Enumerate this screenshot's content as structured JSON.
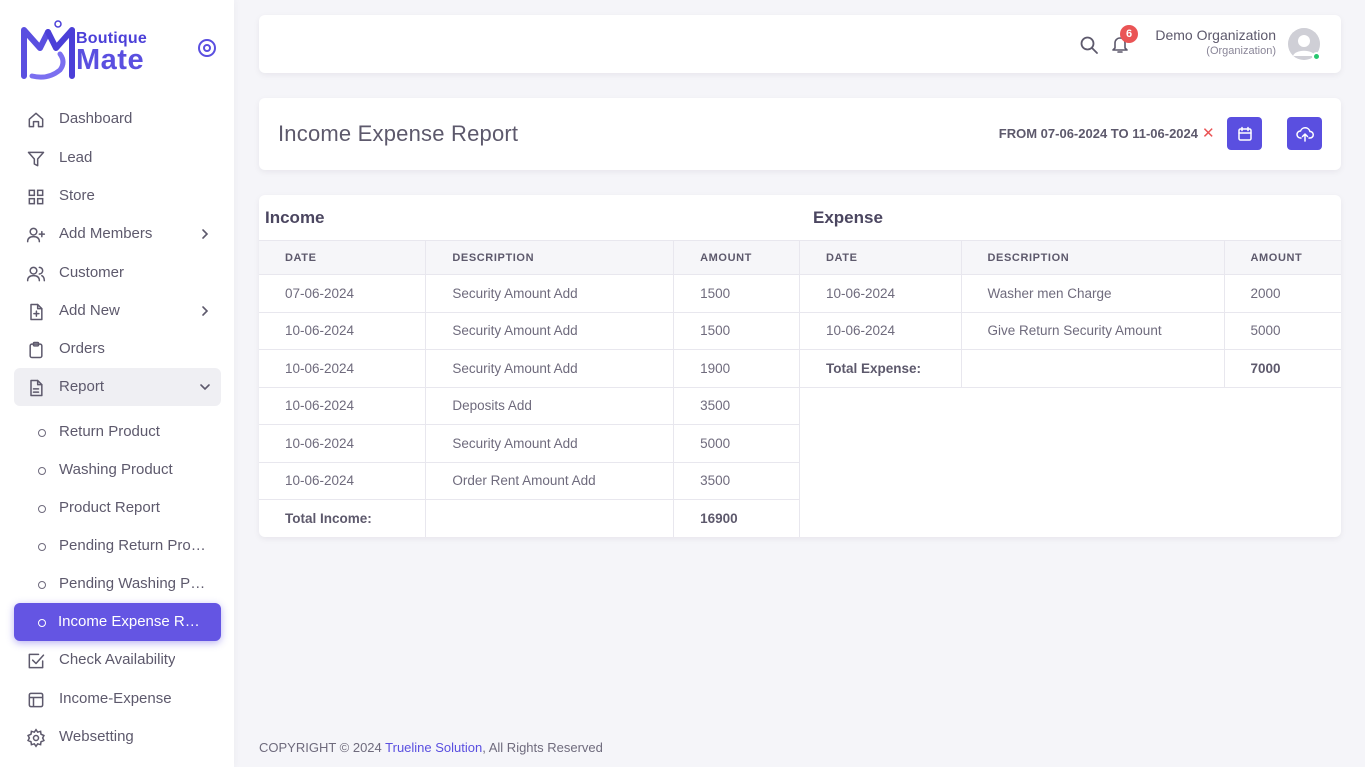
{
  "brand": {
    "line1": "Boutique",
    "line2": "Mate"
  },
  "sidebar": {
    "items": [
      {
        "label": "Dashboard",
        "icon": "home-icon"
      },
      {
        "label": "Lead",
        "icon": "filter-icon"
      },
      {
        "label": "Store",
        "icon": "grid-icon"
      },
      {
        "label": "Add Members",
        "icon": "user-plus-icon"
      },
      {
        "label": "Customer",
        "icon": "users-icon"
      },
      {
        "label": "Add New",
        "icon": "file-plus-icon"
      },
      {
        "label": "Orders",
        "icon": "clipboard-icon"
      },
      {
        "label": "Report",
        "icon": "file-text-icon"
      },
      {
        "label": "Return Product",
        "icon": "circle-icon"
      },
      {
        "label": "Washing Product",
        "icon": "circle-icon"
      },
      {
        "label": "Product Report",
        "icon": "circle-icon"
      },
      {
        "label": "Pending Return Product",
        "icon": "circle-icon"
      },
      {
        "label": "Pending Washing Product",
        "icon": "circle-icon"
      },
      {
        "label": "Income Expense Report",
        "icon": "circle-icon"
      },
      {
        "label": "Check Availability",
        "icon": "checkbox-icon"
      },
      {
        "label": "Income-Expense",
        "icon": "layout-icon"
      },
      {
        "label": "Websetting",
        "icon": "gear-icon"
      }
    ]
  },
  "navbar": {
    "notification_count": "6",
    "user_name": "Demo Organization",
    "user_role": "(Organization)"
  },
  "header": {
    "title": "Income Expense Report",
    "date_range": "FROM 07-06-2024 TO 11-06-2024",
    "clear_symbol": "✕"
  },
  "income": {
    "title": "Income",
    "columns": [
      "DATE",
      "DESCRIPTION",
      "AMOUNT"
    ],
    "rows": [
      [
        "07-06-2024",
        "Security Amount Add",
        "1500"
      ],
      [
        "10-06-2024",
        "Security Amount Add",
        "1500"
      ],
      [
        "10-06-2024",
        "Security Amount Add",
        "1900"
      ],
      [
        "10-06-2024",
        "Deposits Add",
        "3500"
      ],
      [
        "10-06-2024",
        "Security Amount Add",
        "5000"
      ],
      [
        "10-06-2024",
        "Order Rent Amount Add",
        "3500"
      ]
    ],
    "total_label": "Total Income:",
    "total_value": "16900"
  },
  "expense": {
    "title": "Expense",
    "columns": [
      "DATE",
      "DESCRIPTION",
      "AMOUNT"
    ],
    "rows": [
      [
        "10-06-2024",
        "Washer men Charge",
        "2000"
      ],
      [
        "10-06-2024",
        "Give Return Security Amount",
        "5000"
      ]
    ],
    "total_label": "Total Expense:",
    "total_value": "7000"
  },
  "footer": {
    "prefix": "COPYRIGHT © 2024 ",
    "link": "Trueline Solution",
    "suffix": ", All Rights Reserved"
  },
  "colors": {
    "accent": "#5a4fe0",
    "active": "#6455e3",
    "danger": "#ea5455",
    "online": "#28c76f"
  }
}
